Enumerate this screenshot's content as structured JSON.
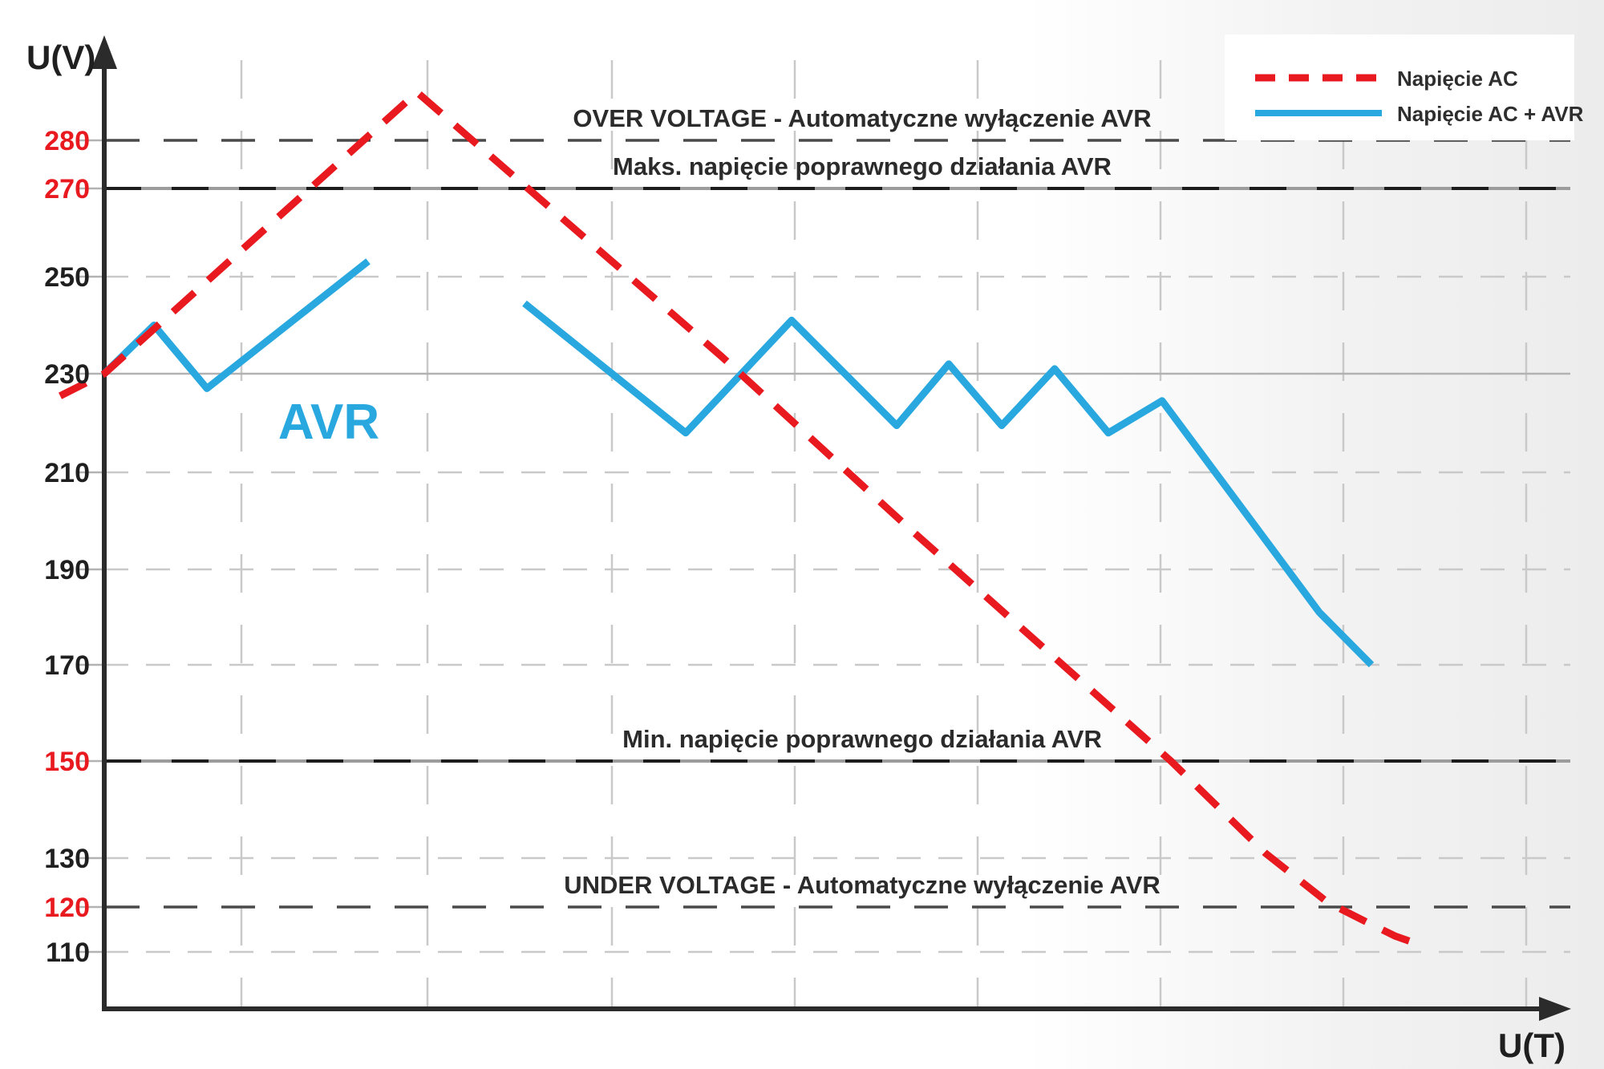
{
  "palette": {
    "red": "#e8191f",
    "blue": "#29a8e0",
    "dark_text": "#2b2b2b",
    "axis": "#2b2b2b",
    "light_grid": "#c9c9c9",
    "solid_grid": "#b2b2b2",
    "dark_dash": "#4a4a4a",
    "limit_solid": "#9c9c9c",
    "limit_dash": "#1c1c1c",
    "legend_bg": "#ffffff"
  },
  "chart_data": {
    "type": "line",
    "title": "",
    "xlabel": "U(T)",
    "ylabel": "U(V)",
    "x_axis_unlabeled": true,
    "x_unit": "time (no tick labels, pixel-based positions)",
    "y_unit": "V",
    "ylim": [
      100,
      295
    ],
    "grid": true,
    "legend_position": "top-right",
    "yticks": [
      {
        "label": "280",
        "value": 280,
        "color": "#e8191f"
      },
      {
        "label": "270",
        "value": 270,
        "color": "#e8191f"
      },
      {
        "label": "250",
        "value": 250,
        "color": "#1f1f1f"
      },
      {
        "label": "230",
        "value": 230,
        "color": "#1f1f1f"
      },
      {
        "label": "210",
        "value": 210,
        "color": "#1f1f1f"
      },
      {
        "label": "190",
        "value": 190,
        "color": "#1f1f1f"
      },
      {
        "label": "170",
        "value": 170,
        "color": "#1f1f1f"
      },
      {
        "label": "150",
        "value": 150,
        "color": "#e8191f"
      },
      {
        "label": "130",
        "value": 130,
        "color": "#1f1f1f"
      },
      {
        "label": "120",
        "value": 120,
        "color": "#e8191f"
      },
      {
        "label": "110",
        "value": 110,
        "color": "#1f1f1f"
      }
    ],
    "gridlines_horizontal": [
      {
        "value": 250,
        "style": "light-dashed"
      },
      {
        "value": 230,
        "style": "light-solid"
      },
      {
        "value": 210,
        "style": "light-dashed"
      },
      {
        "value": 190,
        "style": "light-dashed"
      },
      {
        "value": 170,
        "style": "light-dashed"
      },
      {
        "value": 130,
        "style": "light-dashed"
      },
      {
        "value": 110,
        "style": "light-dashed"
      }
    ],
    "reference_lines": [
      {
        "value": 280,
        "style": "dark-dashed",
        "label": "OVER VOLTAGE - Automatyczne wyłączenie AVR"
      },
      {
        "value": 270,
        "style": "dark-solid-dashed",
        "label": "Maks. napięcie poprawnego działania AVR"
      },
      {
        "value": 150,
        "style": "dark-solid-dashed",
        "label": "Min. napięcie poprawnego działania AVR"
      },
      {
        "value": 120,
        "style": "dark-dashed",
        "label": "UNDER VOLTAGE - Automatyczne wyłączenie AVR"
      }
    ],
    "series": [
      {
        "name": "Napięcie AC",
        "color": "#e8191f",
        "style": "dashed",
        "segments": [
          [
            [
              75,
              225.5
            ],
            [
              130,
              230
            ],
            [
              520,
              290
            ],
            [
              900,
              233.5
            ],
            [
              1130,
              199
            ],
            [
              1460,
              150
            ],
            [
              1578,
              131
            ],
            [
              1655,
              121
            ],
            [
              1700,
              117
            ],
            [
              1740,
              113.5
            ],
            [
              1772,
              111.5
            ]
          ]
        ]
      },
      {
        "name": "Napięcie AC  + AVR",
        "color": "#29a8e0",
        "style": "solid",
        "segments": [
          [
            [
              130,
              230
            ],
            [
              192,
              240
            ],
            [
              258,
              227
            ],
            [
              459,
              253.5
            ]
          ],
          [
            [
              654,
              244.5
            ],
            [
              855,
              218
            ],
            [
              987,
              241
            ],
            [
              1118,
              219.5
            ],
            [
              1183,
              232
            ],
            [
              1249,
              219.5
            ],
            [
              1315,
              231
            ],
            [
              1382,
              218
            ],
            [
              1449,
              224.5
            ],
            [
              1645,
              181
            ],
            [
              1710,
              170
            ]
          ]
        ]
      }
    ],
    "annotation": {
      "text": "AVR",
      "color": "#29a8e0"
    },
    "legend": {
      "items": [
        {
          "label": "Napięcie AC",
          "color": "#e8191f",
          "style": "dashed"
        },
        {
          "label": "Napięcie AC  + AVR",
          "color": "#29a8e0",
          "style": "solid"
        }
      ]
    }
  }
}
